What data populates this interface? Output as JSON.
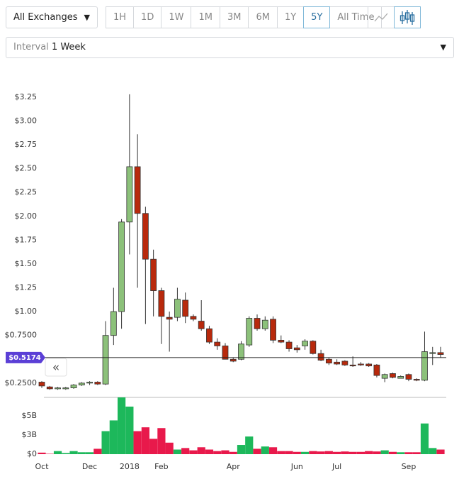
{
  "controls": {
    "exchange": "All Exchanges",
    "ranges": [
      "1H",
      "1D",
      "1W",
      "1M",
      "3M",
      "6M",
      "1Y",
      "5Y",
      "All Time"
    ],
    "active_range": "5Y",
    "interval_label": "Interval",
    "interval_value": "1 Week"
  },
  "chart_data": {
    "type": "candlestick",
    "categories": [
      "Oct",
      null,
      null,
      null,
      null,
      null,
      "Dec",
      null,
      null,
      null,
      null,
      "2018",
      null,
      null,
      null,
      "Feb",
      null,
      null,
      null,
      null,
      null,
      null,
      null,
      null,
      "Apr",
      null,
      null,
      null,
      null,
      null,
      null,
      null,
      "Jun",
      null,
      null,
      null,
      null,
      "Jul",
      null,
      null,
      null,
      null,
      null,
      null,
      null,
      null,
      "Sep",
      null,
      null,
      null,
      null
    ],
    "open": [
      0.26,
      0.21,
      0.19,
      0.19,
      0.2,
      0.23,
      0.25,
      0.26,
      0.24,
      0.75,
      1.0,
      1.94,
      2.52,
      2.03,
      1.55,
      1.22,
      0.94,
      0.94,
      1.12,
      0.95,
      0.9,
      0.82,
      0.68,
      0.64,
      0.5,
      0.5,
      0.65,
      0.93,
      0.82,
      0.92,
      0.7,
      0.68,
      0.62,
      0.64,
      0.69,
      0.56,
      0.5,
      0.47,
      0.48,
      0.44,
      0.45,
      0.45,
      0.44,
      0.3,
      0.35,
      0.3,
      0.34,
      0.29,
      0.28,
      0.56,
      0.57
    ],
    "high": [
      0.27,
      0.22,
      0.21,
      0.21,
      0.24,
      0.26,
      0.27,
      0.27,
      0.9,
      1.25,
      1.97,
      3.28,
      2.86,
      2.1,
      1.65,
      1.25,
      1.0,
      1.25,
      1.2,
      0.97,
      1.12,
      0.85,
      0.72,
      0.67,
      0.52,
      0.69,
      0.95,
      0.97,
      0.95,
      0.95,
      0.75,
      0.7,
      0.65,
      0.71,
      0.7,
      0.6,
      0.52,
      0.5,
      0.49,
      0.53,
      0.47,
      0.46,
      0.45,
      0.35,
      0.36,
      0.33,
      0.35,
      0.3,
      0.79,
      0.63,
      0.63
    ],
    "low": [
      0.2,
      0.18,
      0.18,
      0.18,
      0.19,
      0.22,
      0.23,
      0.23,
      0.23,
      0.65,
      0.82,
      1.6,
      1.25,
      0.87,
      0.95,
      0.66,
      0.58,
      0.9,
      0.88,
      0.9,
      0.8,
      0.66,
      0.6,
      0.5,
      0.47,
      0.49,
      0.63,
      0.8,
      0.8,
      0.67,
      0.67,
      0.58,
      0.57,
      0.6,
      0.55,
      0.48,
      0.44,
      0.44,
      0.43,
      0.42,
      0.43,
      0.42,
      0.31,
      0.26,
      0.3,
      0.3,
      0.27,
      0.27,
      0.27,
      0.44,
      0.52
    ],
    "close": [
      0.22,
      0.19,
      0.2,
      0.2,
      0.23,
      0.25,
      0.26,
      0.24,
      0.75,
      1.0,
      1.94,
      2.52,
      2.03,
      1.55,
      1.22,
      0.95,
      0.92,
      1.13,
      0.95,
      0.92,
      0.82,
      0.68,
      0.64,
      0.5,
      0.48,
      0.66,
      0.93,
      0.82,
      0.91,
      0.7,
      0.68,
      0.61,
      0.6,
      0.69,
      0.56,
      0.49,
      0.46,
      0.45,
      0.44,
      0.43,
      0.44,
      0.43,
      0.33,
      0.34,
      0.31,
      0.32,
      0.29,
      0.28,
      0.58,
      0.57,
      0.55
    ],
    "volume": [
      0.2,
      0.05,
      0.4,
      0.15,
      0.4,
      0.25,
      0.25,
      0.7,
      3.0,
      4.4,
      7.4,
      6.2,
      3.0,
      3.5,
      2.0,
      3.4,
      1.5,
      0.6,
      0.8,
      0.5,
      0.9,
      0.6,
      0.4,
      0.5,
      0.3,
      1.2,
      2.3,
      0.7,
      1.0,
      0.9,
      0.4,
      0.4,
      0.3,
      0.3,
      0.4,
      0.35,
      0.4,
      0.3,
      0.35,
      0.3,
      0.3,
      0.4,
      0.35,
      0.5,
      0.3,
      0.25,
      0.25,
      0.25,
      4.0,
      0.8,
      0.6
    ],
    "ylim": [
      0.1,
      3.45
    ],
    "yticks": [
      {
        "value": 0.25,
        "label": "$0.2500"
      },
      {
        "value": 0.75,
        "label": "$0.7500"
      },
      {
        "value": 1,
        "label": "$1.00"
      },
      {
        "value": 1.25,
        "label": "$1.25"
      },
      {
        "value": 1.5,
        "label": "$1.50"
      },
      {
        "value": 1.75,
        "label": "$1.75"
      },
      {
        "value": 2,
        "label": "$2.00"
      },
      {
        "value": 2.25,
        "label": "$2.25"
      },
      {
        "value": 2.5,
        "label": "$2.50"
      },
      {
        "value": 2.75,
        "label": "$2.75"
      },
      {
        "value": 3,
        "label": "$3.00"
      },
      {
        "value": 3.25,
        "label": "$3.25"
      }
    ],
    "y2lim": [
      0,
      7.4
    ],
    "y2ticks": [
      {
        "value": 0,
        "label": "$0"
      },
      {
        "value": 2.5,
        "label": "$3B"
      },
      {
        "value": 5,
        "label": "$5B"
      }
    ],
    "current_price": {
      "value": 0.5174,
      "label": "$0.5174"
    },
    "up_color": "#8cc17a",
    "down_color": "#b8290c",
    "volume_up_color": "#1db85b",
    "volume_down_color": "#e8194b",
    "grid": false
  }
}
